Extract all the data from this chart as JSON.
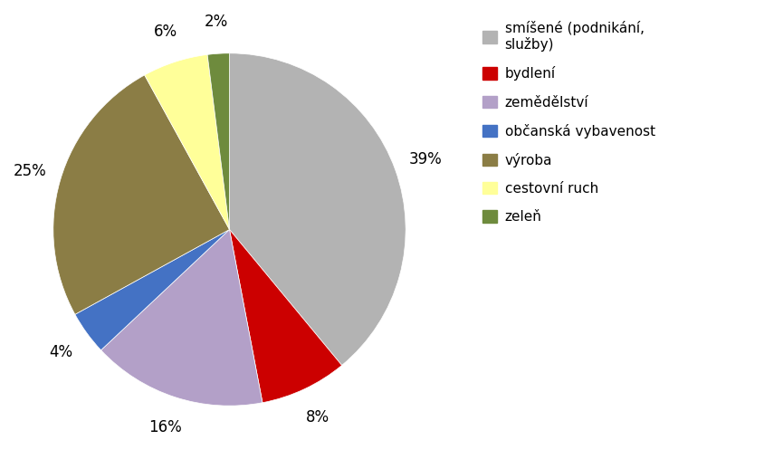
{
  "labels": [
    "smíšené (podnikání,\nslužby)",
    "bydlení",
    "zemědělství",
    "občanská vybavenost",
    "výroba",
    "cestovní ruch",
    "zeleň"
  ],
  "values": [
    39,
    8,
    16,
    4,
    25,
    6,
    2
  ],
  "colors": [
    "#b3b3b3",
    "#cc0000",
    "#b3a0c8",
    "#4472c4",
    "#8b7d45",
    "#ffff99",
    "#6e8b3d"
  ],
  "pct_labels": [
    "39%",
    "8%",
    "16%",
    "4%",
    "25%",
    "6%",
    "2%"
  ],
  "legend_labels": [
    "smíšené (podnikání,\nslužby)",
    "bydlení",
    "zemědělství",
    "občanská vybavenost",
    "výroba",
    "cestovní ruch",
    "zeleň"
  ],
  "background_color": "#ffffff",
  "fontsize": 12,
  "legend_fontsize": 11
}
